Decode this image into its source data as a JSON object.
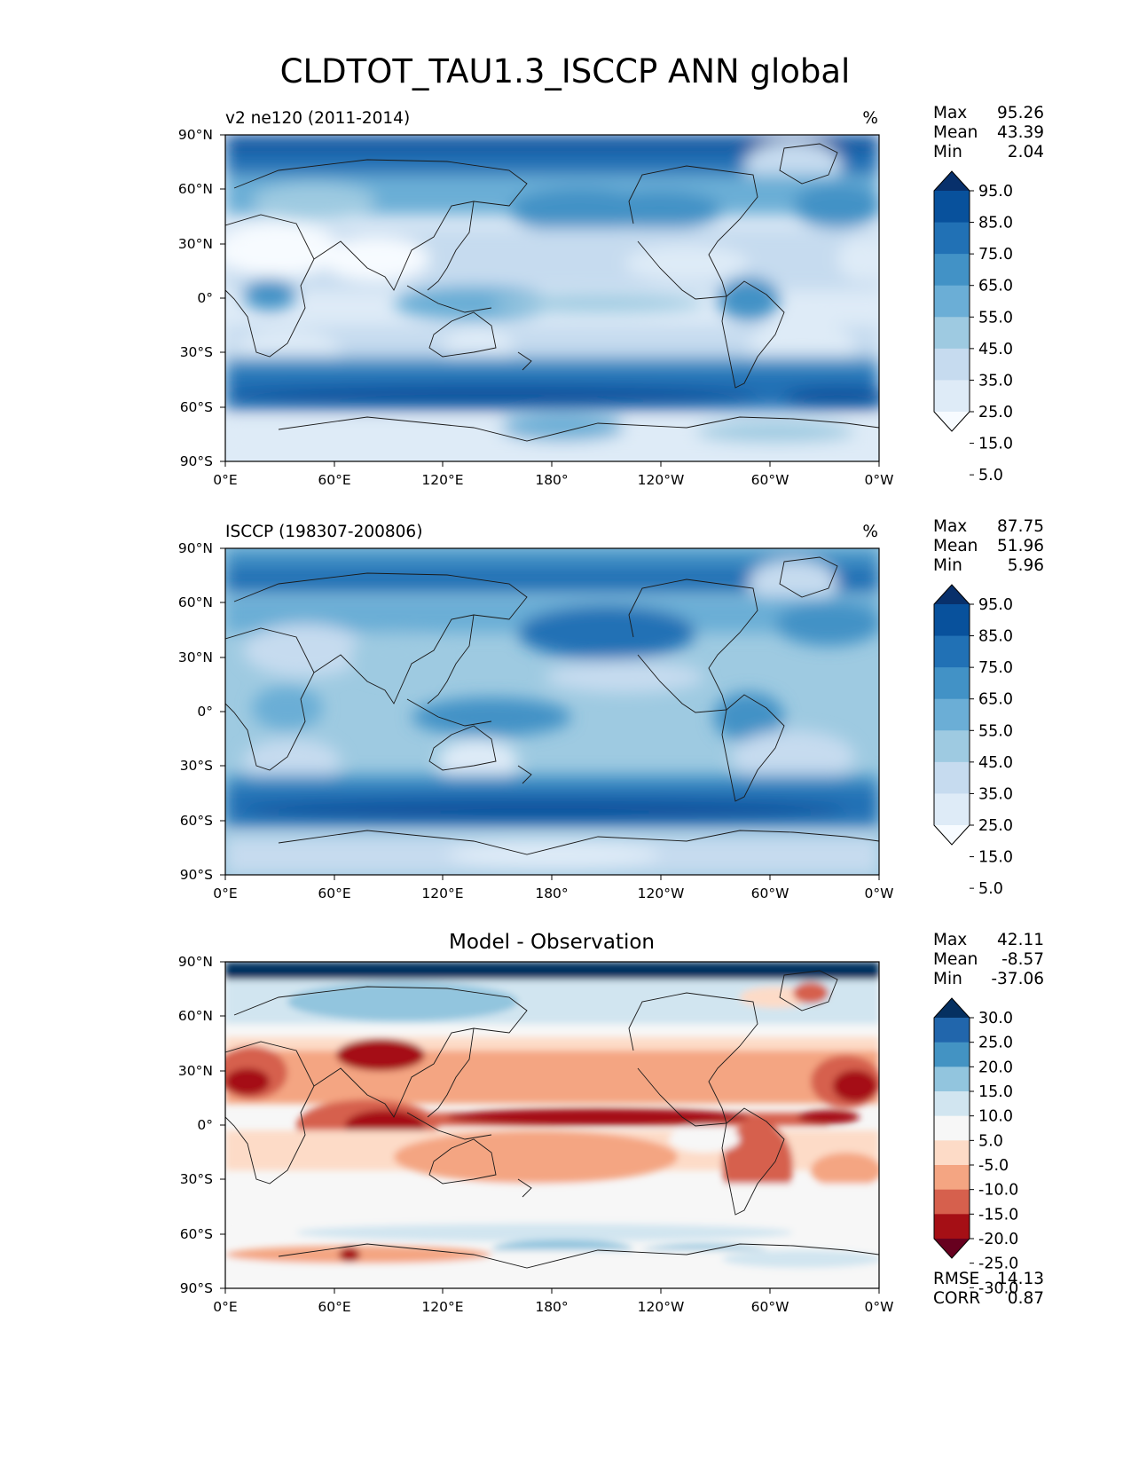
{
  "figure_title": "CLDTOT_TAU1.3_ISCCP ANN global",
  "colors": {
    "blues": [
      "#f7fbff",
      "#deebf7",
      "#c6dbef",
      "#9ecae1",
      "#6baed6",
      "#4292c6",
      "#2171b5",
      "#08519c",
      "#08306b"
    ],
    "diff": [
      "#67001f",
      "#a50f15",
      "#d6604d",
      "#f4a582",
      "#fddbc7",
      "#f7f7f7",
      "#d1e5f0",
      "#92c5de",
      "#4393c3",
      "#2166ac",
      "#053061"
    ],
    "coast": "#1a1a1a"
  },
  "panels": [
    {
      "id": "test",
      "title_left": "v2 ne120 (2011-2014)",
      "title_center": "",
      "units": "%",
      "stats": {
        "labels": [
          "Max",
          "Mean",
          "Min"
        ],
        "values": [
          "95.26",
          "43.39",
          "2.04"
        ]
      },
      "colorbar": {
        "levels": [
          "95.0",
          "85.0",
          "75.0",
          "65.0",
          "55.0",
          "45.0",
          "35.0",
          "25.0",
          "15.0",
          "5.0"
        ],
        "extend": "both",
        "palette": "blues"
      },
      "extra_stats": null
    },
    {
      "id": "reference",
      "title_left": "ISCCP (198307-200806)",
      "title_center": "",
      "units": "%",
      "stats": {
        "labels": [
          "Max",
          "Mean",
          "Min"
        ],
        "values": [
          "87.75",
          "51.96",
          "5.96"
        ]
      },
      "colorbar": {
        "levels": [
          "95.0",
          "85.0",
          "75.0",
          "65.0",
          "55.0",
          "45.0",
          "35.0",
          "25.0",
          "15.0",
          "5.0"
        ],
        "extend": "both",
        "palette": "blues"
      },
      "extra_stats": null
    },
    {
      "id": "diff",
      "title_left": "",
      "title_center": "Model - Observation",
      "units": "",
      "stats": {
        "labels": [
          "Max",
          "Mean",
          "Min"
        ],
        "values": [
          "42.11",
          "-8.57",
          "-37.06"
        ]
      },
      "colorbar": {
        "levels": [
          "30.0",
          "25.0",
          "20.0",
          "15.0",
          "10.0",
          "5.0",
          "-5.0",
          "-10.0",
          "-15.0",
          "-20.0",
          "-25.0",
          "-30.0"
        ],
        "extend": "both",
        "palette": "diff"
      },
      "extra_stats": {
        "labels": [
          "RMSE",
          "CORR"
        ],
        "values": [
          "14.13",
          "0.87"
        ]
      }
    }
  ],
  "axes": {
    "x_ticks": [
      "0°E",
      "60°E",
      "120°E",
      "180°",
      "120°W",
      "60°W",
      "0°W"
    ],
    "y_ticks": [
      "90°N",
      "60°N",
      "30°N",
      "0°",
      "30°S",
      "60°S",
      "90°S"
    ]
  },
  "chart_data": [
    {
      "type": "heatmap",
      "title": "v2 ne120 (2011-2014)",
      "units": "%",
      "x_ticks": [
        "0°E",
        "60°E",
        "120°E",
        "180°",
        "120°W",
        "60°W",
        "0°W"
      ],
      "y_ticks": [
        "90°N",
        "60°N",
        "30°N",
        "0°",
        "30°S",
        "60°S",
        "90°S"
      ],
      "xlim": [
        0,
        360
      ],
      "ylim": [
        -90,
        90
      ],
      "levels": [
        5,
        15,
        25,
        35,
        45,
        55,
        65,
        75,
        85,
        95
      ],
      "stats": {
        "max": 95.26,
        "mean": 43.39,
        "min": 2.04
      }
    },
    {
      "type": "heatmap",
      "title": "ISCCP (198307-200806)",
      "units": "%",
      "x_ticks": [
        "0°E",
        "60°E",
        "120°E",
        "180°",
        "120°W",
        "60°W",
        "0°W"
      ],
      "y_ticks": [
        "90°N",
        "60°N",
        "30°N",
        "0°",
        "30°S",
        "60°S",
        "90°S"
      ],
      "xlim": [
        0,
        360
      ],
      "ylim": [
        -90,
        90
      ],
      "levels": [
        5,
        15,
        25,
        35,
        45,
        55,
        65,
        75,
        85,
        95
      ],
      "stats": {
        "max": 87.75,
        "mean": 51.96,
        "min": 5.96
      }
    },
    {
      "type": "heatmap",
      "title": "Model - Observation",
      "x_ticks": [
        "0°E",
        "60°E",
        "120°E",
        "180°",
        "120°W",
        "60°W",
        "0°W"
      ],
      "y_ticks": [
        "90°N",
        "60°N",
        "30°N",
        "0°",
        "30°S",
        "60°S",
        "90°S"
      ],
      "xlim": [
        0,
        360
      ],
      "ylim": [
        -90,
        90
      ],
      "levels": [
        -30,
        -25,
        -20,
        -15,
        -10,
        -5,
        5,
        10,
        15,
        20,
        25,
        30
      ],
      "stats": {
        "max": 42.11,
        "mean": -8.57,
        "min": -37.06,
        "rmse": 14.13,
        "corr": 0.87
      }
    }
  ]
}
